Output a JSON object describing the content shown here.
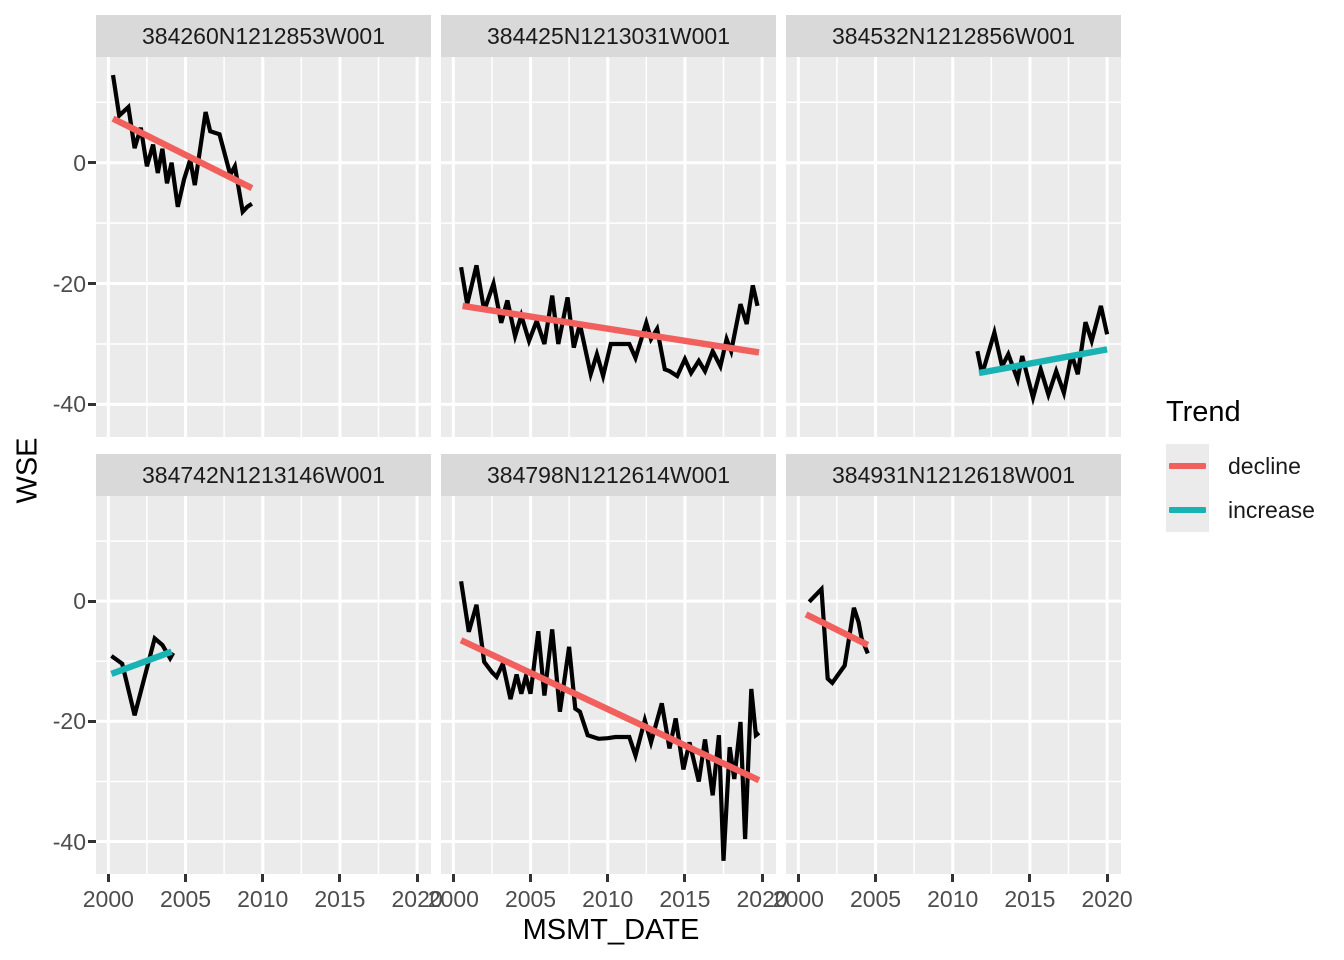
{
  "figure": {
    "x_axis_label": "MSMT_DATE",
    "y_axis_label": "WSE",
    "legend": {
      "title": "Trend",
      "items": [
        {
          "label": "decline",
          "color": "#F1605D"
        },
        {
          "label": "increase",
          "color": "#19B3B3"
        }
      ]
    },
    "colors": {
      "panel_bg": "#EBEBEB",
      "strip_bg": "#D9D9D9",
      "grid": "#FFFFFF",
      "data_line": "#000000",
      "tick_text": "#4D4D4D",
      "strip_text": "#1A1A1A",
      "tick_mark": "#333333",
      "legend_key_bg": "#EBEBEB"
    }
  },
  "chart_data": {
    "type": "line",
    "xlabel": "MSMT_DATE",
    "ylabel": "WSE",
    "xlim": [
      1999.2,
      2020.9
    ],
    "ylim": [
      -45.4,
      17.5
    ],
    "x_major_ticks": [
      2000,
      2005,
      2010,
      2015,
      2020
    ],
    "x_minor_ticks": [
      2002.5,
      2007.5,
      2012.5,
      2017.5
    ],
    "y_major_ticks": [
      0,
      -20,
      -40
    ],
    "y_minor_ticks": [
      10,
      -10,
      -30
    ],
    "grid": true,
    "legend_position": "right",
    "legend_title": "Trend",
    "trend_colors": {
      "decline": "#F1605D",
      "increase": "#19B3B3"
    },
    "facets": [
      {
        "title": "384260N1212853W001",
        "trend": "decline",
        "series": [
          [
            2000.3,
            14.5
          ],
          [
            2000.7,
            7.8
          ],
          [
            2001.3,
            9.2
          ],
          [
            2001.7,
            2.4
          ],
          [
            2002.1,
            5.8
          ],
          [
            2002.5,
            -0.6
          ],
          [
            2002.9,
            3.0
          ],
          [
            2003.2,
            -1.7
          ],
          [
            2003.5,
            2.3
          ],
          [
            2003.8,
            -3.4
          ],
          [
            2004.1,
            0.0
          ],
          [
            2004.5,
            -7.3
          ],
          [
            2004.9,
            -2.8
          ],
          [
            2005.3,
            0.5
          ],
          [
            2005.6,
            -3.7
          ],
          [
            2006.3,
            8.4
          ],
          [
            2006.6,
            5.2
          ],
          [
            2007.2,
            4.7
          ],
          [
            2007.9,
            -2.0
          ],
          [
            2008.2,
            -0.6
          ],
          [
            2008.7,
            -8.1
          ],
          [
            2009.0,
            -7.3
          ],
          [
            2009.3,
            -6.8
          ]
        ],
        "trend_line": [
          [
            2000.3,
            7.3
          ],
          [
            2009.3,
            -4.2
          ]
        ]
      },
      {
        "title": "384425N1213031W001",
        "trend": "decline",
        "series": [
          [
            2000.5,
            -17.3
          ],
          [
            2000.9,
            -23.4
          ],
          [
            2001.5,
            -17.0
          ],
          [
            2002.0,
            -24.5
          ],
          [
            2002.6,
            -20.0
          ],
          [
            2003.1,
            -26.5
          ],
          [
            2003.5,
            -22.8
          ],
          [
            2004.0,
            -28.7
          ],
          [
            2004.4,
            -25.3
          ],
          [
            2004.9,
            -29.5
          ],
          [
            2005.4,
            -26.2
          ],
          [
            2005.9,
            -30.0
          ],
          [
            2006.4,
            -22.0
          ],
          [
            2006.8,
            -30.0
          ],
          [
            2007.4,
            -22.3
          ],
          [
            2007.8,
            -30.6
          ],
          [
            2008.2,
            -26.7
          ],
          [
            2008.9,
            -35.0
          ],
          [
            2009.3,
            -31.7
          ],
          [
            2009.7,
            -35.3
          ],
          [
            2010.2,
            -30.0
          ],
          [
            2011.4,
            -30.0
          ],
          [
            2011.8,
            -32.3
          ],
          [
            2012.5,
            -26.5
          ],
          [
            2012.8,
            -29.2
          ],
          [
            2013.2,
            -27.5
          ],
          [
            2013.7,
            -34.2
          ],
          [
            2014.0,
            -34.5
          ],
          [
            2014.5,
            -35.3
          ],
          [
            2015.0,
            -32.5
          ],
          [
            2015.4,
            -34.8
          ],
          [
            2015.9,
            -32.8
          ],
          [
            2016.3,
            -34.5
          ],
          [
            2016.8,
            -31.2
          ],
          [
            2017.3,
            -33.7
          ],
          [
            2017.7,
            -29.2
          ],
          [
            2018.0,
            -31.2
          ],
          [
            2018.6,
            -23.4
          ],
          [
            2019.0,
            -26.7
          ],
          [
            2019.4,
            -20.3
          ],
          [
            2019.7,
            -23.7
          ]
        ],
        "trend_line": [
          [
            2000.6,
            -23.7
          ],
          [
            2019.8,
            -31.4
          ]
        ]
      },
      {
        "title": "384532N1212856W001",
        "trend": "increase",
        "series": [
          [
            2011.6,
            -31.2
          ],
          [
            2011.9,
            -35.0
          ],
          [
            2012.7,
            -28.1
          ],
          [
            2013.2,
            -33.7
          ],
          [
            2013.6,
            -31.7
          ],
          [
            2014.2,
            -35.9
          ],
          [
            2014.5,
            -32.0
          ],
          [
            2015.2,
            -38.9
          ],
          [
            2015.7,
            -34.2
          ],
          [
            2016.2,
            -38.4
          ],
          [
            2016.7,
            -34.5
          ],
          [
            2017.2,
            -38.1
          ],
          [
            2017.7,
            -31.7
          ],
          [
            2018.1,
            -35.0
          ],
          [
            2018.6,
            -26.4
          ],
          [
            2019.0,
            -29.5
          ],
          [
            2019.6,
            -23.7
          ],
          [
            2020.0,
            -28.4
          ]
        ],
        "trend_line": [
          [
            2011.7,
            -34.8
          ],
          [
            2020.0,
            -30.9
          ]
        ]
      },
      {
        "title": "384742N1213146W001",
        "trend": "increase",
        "series": [
          [
            2000.2,
            -9.1
          ],
          [
            2000.9,
            -10.4
          ],
          [
            2001.7,
            -19.0
          ],
          [
            2003.0,
            -6.2
          ],
          [
            2003.5,
            -7.3
          ],
          [
            2004.0,
            -9.5
          ],
          [
            2004.2,
            -8.6
          ]
        ],
        "trend_line": [
          [
            2000.2,
            -12.1
          ],
          [
            2004.1,
            -8.4
          ]
        ]
      },
      {
        "title": "384798N1212614W001",
        "trend": "decline",
        "series": [
          [
            2000.5,
            3.3
          ],
          [
            2001.0,
            -5.1
          ],
          [
            2001.5,
            -0.6
          ],
          [
            2002.0,
            -10.1
          ],
          [
            2002.5,
            -11.8
          ],
          [
            2002.8,
            -12.6
          ],
          [
            2003.2,
            -10.4
          ],
          [
            2003.7,
            -16.3
          ],
          [
            2004.1,
            -12.2
          ],
          [
            2004.4,
            -15.4
          ],
          [
            2004.7,
            -12.5
          ],
          [
            2005.0,
            -15.4
          ],
          [
            2005.5,
            -5.0
          ],
          [
            2005.9,
            -15.7
          ],
          [
            2006.4,
            -4.7
          ],
          [
            2006.9,
            -18.4
          ],
          [
            2007.5,
            -7.6
          ],
          [
            2007.9,
            -17.9
          ],
          [
            2008.2,
            -18.4
          ],
          [
            2008.7,
            -22.3
          ],
          [
            2009.4,
            -22.9
          ],
          [
            2010.0,
            -22.8
          ],
          [
            2010.5,
            -22.6
          ],
          [
            2011.4,
            -22.6
          ],
          [
            2011.8,
            -25.7
          ],
          [
            2012.4,
            -19.8
          ],
          [
            2012.8,
            -23.5
          ],
          [
            2013.5,
            -17.0
          ],
          [
            2014.0,
            -24.5
          ],
          [
            2014.4,
            -19.5
          ],
          [
            2014.9,
            -28.0
          ],
          [
            2015.3,
            -23.5
          ],
          [
            2015.9,
            -30.0
          ],
          [
            2016.3,
            -23.0
          ],
          [
            2016.8,
            -32.3
          ],
          [
            2017.2,
            -22.3
          ],
          [
            2017.5,
            -43.2
          ],
          [
            2017.9,
            -24.3
          ],
          [
            2018.2,
            -29.6
          ],
          [
            2018.6,
            -20.1
          ],
          [
            2018.9,
            -39.6
          ],
          [
            2019.3,
            -14.6
          ],
          [
            2019.6,
            -22.3
          ],
          [
            2019.8,
            -21.9
          ]
        ],
        "trend_line": [
          [
            2000.5,
            -6.5
          ],
          [
            2019.8,
            -29.8
          ]
        ]
      },
      {
        "title": "384931N1212618W001",
        "trend": "decline",
        "series": [
          [
            2000.7,
            -0.1
          ],
          [
            2001.5,
            2.0
          ],
          [
            2001.9,
            -12.9
          ],
          [
            2002.2,
            -13.6
          ],
          [
            2003.0,
            -10.7
          ],
          [
            2003.6,
            -1.1
          ],
          [
            2003.9,
            -3.5
          ],
          [
            2004.1,
            -6.2
          ],
          [
            2004.5,
            -8.7
          ]
        ],
        "trend_line": [
          [
            2000.5,
            -2.2
          ],
          [
            2004.5,
            -7.3
          ]
        ]
      }
    ]
  }
}
